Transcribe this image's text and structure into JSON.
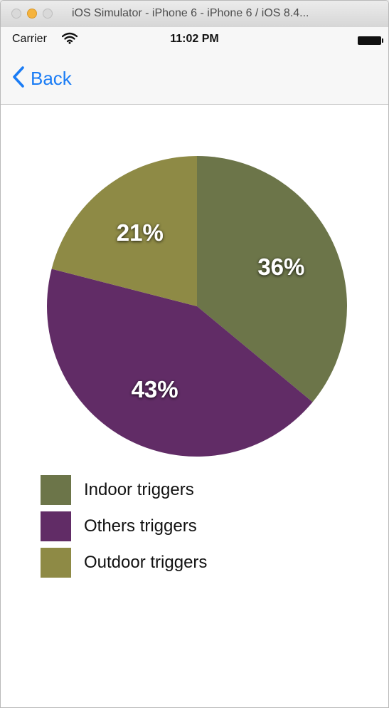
{
  "window": {
    "title": "iOS Simulator - iPhone 6 - iPhone 6 / iOS 8.4..."
  },
  "status_bar": {
    "carrier": "Carrier",
    "time": "11:02 PM"
  },
  "nav": {
    "back_label": "Back"
  },
  "colors": {
    "accent": "#1a7cf5",
    "label_text": "#ffffff"
  },
  "chart_data": {
    "type": "pie",
    "slices": [
      {
        "label": "Indoor triggers",
        "value": 36,
        "display": "36%",
        "color": "#6c7549"
      },
      {
        "label": "Others triggers",
        "value": 43,
        "display": "43%",
        "color": "#612c66"
      },
      {
        "label": "Outdoor triggers",
        "value": 21,
        "display": "21%",
        "color": "#8e8a45"
      }
    ],
    "start": "12 o'clock",
    "direction": "clockwise",
    "legend": "bottom-left"
  }
}
